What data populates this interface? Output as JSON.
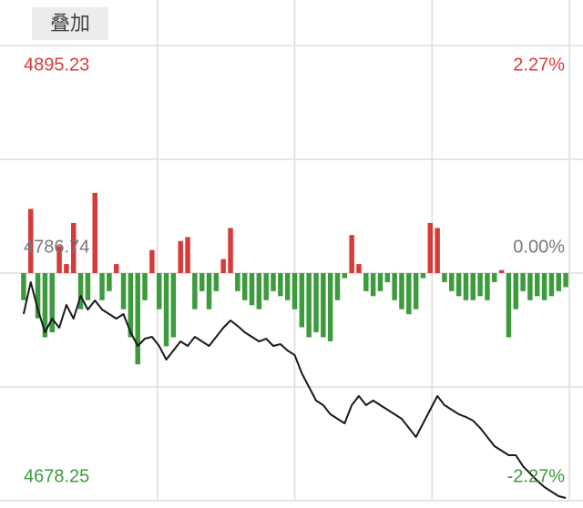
{
  "overlay_button": "叠加",
  "chart_data": {
    "type": "line",
    "ylim": [
      4678.25,
      4895.23
    ],
    "yticks": [
      4678.25,
      4786.74,
      4895.23
    ],
    "y2lim": [
      -2.27,
      2.27
    ],
    "y2ticks": [
      {
        "value": -2.27,
        "label": "-2.27%"
      },
      {
        "value": 0,
        "label": "0.00%"
      },
      {
        "value": 2.27,
        "label": "2.27%"
      }
    ],
    "colors": {
      "up": "#d83a3a",
      "down": "#3d9a3d",
      "flat": "#777777"
    },
    "grid": true,
    "series": [
      {
        "type": "line",
        "color": "#1a1a1a",
        "values": [
          4767.21,
          4782.4,
          4769.38,
          4758.53,
          4765.04,
          4760.7,
          4771.55,
          4765.04,
          4775.89,
          4769.38,
          4773.72,
          4769.38,
          4767.21,
          4765.04,
          4767.21,
          4758.53,
          4752.02,
          4755.49,
          4756.36,
          4752.02,
          4745.51,
          4749.85,
          4754.19,
          4752.02,
          4756.36,
          4754.19,
          4752.02,
          4756.36,
          4760.7,
          4764.17,
          4761.57,
          4758.53,
          4756.36,
          4754.19,
          4755.49,
          4752.02,
          4752.89,
          4749.85,
          4747.68,
          4739.0,
          4732.49,
          4725.98,
          4723.81,
          4719.47,
          4717.3,
          4715.13,
          4723.81,
          4728.15,
          4723.81,
          4725.98,
          4723.81,
          4721.64,
          4719.47,
          4717.3,
          4712.96,
          4708.62,
          4715.13,
          4721.64,
          4728.15,
          4723.81,
          4721.64,
          4719.47,
          4718.17,
          4716.43,
          4712.96,
          4708.62,
          4704.28,
          4702.11,
          4699.94,
          4699.94,
          4694.73,
          4691.26,
          4687.79,
          4684.75,
          4682.58,
          4680.41,
          4679.54
        ]
      },
      {
        "type": "bar",
        "axis": "y2",
        "values": [
          -0.27,
          0.64,
          -0.45,
          -0.64,
          -0.59,
          0.27,
          0.09,
          0.5,
          -0.36,
          -0.27,
          0.8,
          -0.27,
          -0.18,
          0.09,
          -0.36,
          -0.64,
          -0.91,
          -0.27,
          0.23,
          -0.36,
          -0.73,
          -0.64,
          0.32,
          0.36,
          -0.36,
          -0.18,
          -0.36,
          -0.18,
          0.14,
          0.45,
          -0.18,
          -0.27,
          -0.32,
          -0.36,
          -0.27,
          -0.18,
          -0.23,
          -0.27,
          -0.36,
          -0.54,
          -0.64,
          -0.59,
          -0.64,
          -0.68,
          -0.27,
          -0.05,
          0.38,
          0.09,
          -0.18,
          -0.23,
          -0.18,
          -0.09,
          -0.27,
          -0.36,
          -0.41,
          -0.36,
          -0.05,
          0.5,
          0.45,
          -0.09,
          -0.18,
          -0.23,
          -0.27,
          -0.27,
          -0.23,
          -0.27,
          -0.09,
          0.03,
          -0.64,
          -0.36,
          -0.18,
          -0.27,
          -0.23,
          -0.27,
          -0.23,
          -0.18,
          -0.14
        ]
      }
    ]
  }
}
